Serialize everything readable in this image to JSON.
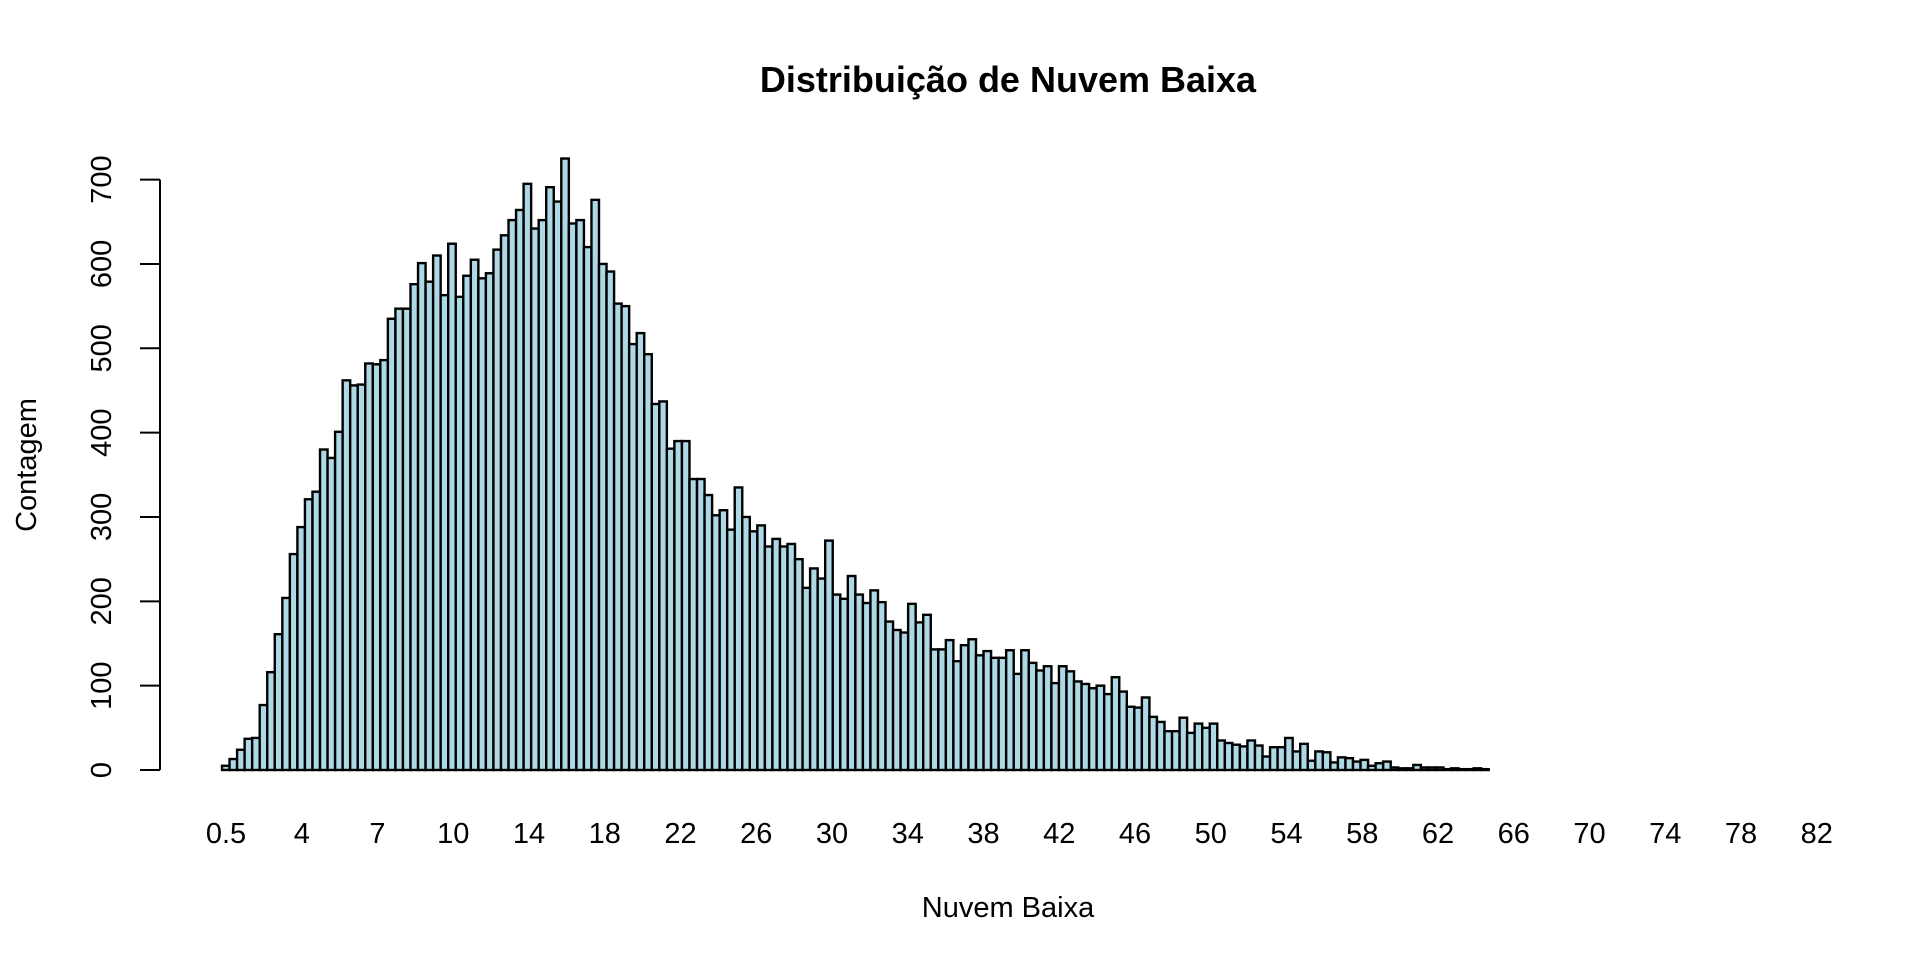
{
  "chart_data": {
    "type": "bar",
    "title": "Distribuição de Nuvem Baixa",
    "xlabel": "Nuvem Baixa",
    "ylabel": "Contagem",
    "xlim": [
      0.5,
      84
    ],
    "ylim": [
      0,
      725
    ],
    "x_tick_labels": [
      "0.5",
      "4",
      "7",
      "10",
      "14",
      "18",
      "22",
      "26",
      "30",
      "34",
      "38",
      "42",
      "46",
      "50",
      "54",
      "58",
      "62",
      "66",
      "70",
      "74",
      "78",
      "82"
    ],
    "y_tick_labels": [
      "0",
      "100",
      "200",
      "300",
      "400",
      "500",
      "600",
      "700"
    ],
    "bar_color": "#add8e6",
    "edge_color": "#000000",
    "grid": false,
    "values": [
      5,
      13,
      24,
      37,
      38,
      77,
      116,
      161,
      204,
      256,
      288,
      321,
      330,
      380,
      370,
      401,
      462,
      456,
      457,
      482,
      481,
      486,
      535,
      547,
      547,
      576,
      601,
      579,
      610,
      563,
      624,
      561,
      586,
      605,
      583,
      589,
      617,
      634,
      652,
      664,
      695,
      642,
      652,
      691,
      674,
      725,
      648,
      652,
      620,
      676,
      600,
      591,
      553,
      550,
      505,
      518,
      493,
      434,
      437,
      381,
      390,
      390,
      345,
      345,
      326,
      302,
      308,
      285,
      335,
      300,
      283,
      290,
      265,
      274,
      265,
      268,
      250,
      216,
      239,
      227,
      272,
      208,
      203,
      230,
      208,
      198,
      213,
      199,
      176,
      166,
      163,
      197,
      175,
      184,
      143,
      143,
      154,
      129,
      148,
      155,
      136,
      141,
      133,
      133,
      142,
      114,
      142,
      127,
      118,
      123,
      103,
      123,
      117,
      105,
      102,
      97,
      100,
      90,
      110,
      93,
      75,
      74,
      86,
      63,
      57,
      46,
      46,
      62,
      44,
      55,
      50,
      55,
      35,
      32,
      30,
      28,
      35,
      29,
      16,
      27,
      27,
      38,
      22,
      31,
      11,
      22,
      21,
      9,
      15,
      14,
      10,
      12,
      5,
      8,
      10,
      3,
      2,
      2,
      6,
      3,
      3,
      3,
      1,
      2,
      1,
      1,
      2,
      1
    ]
  }
}
